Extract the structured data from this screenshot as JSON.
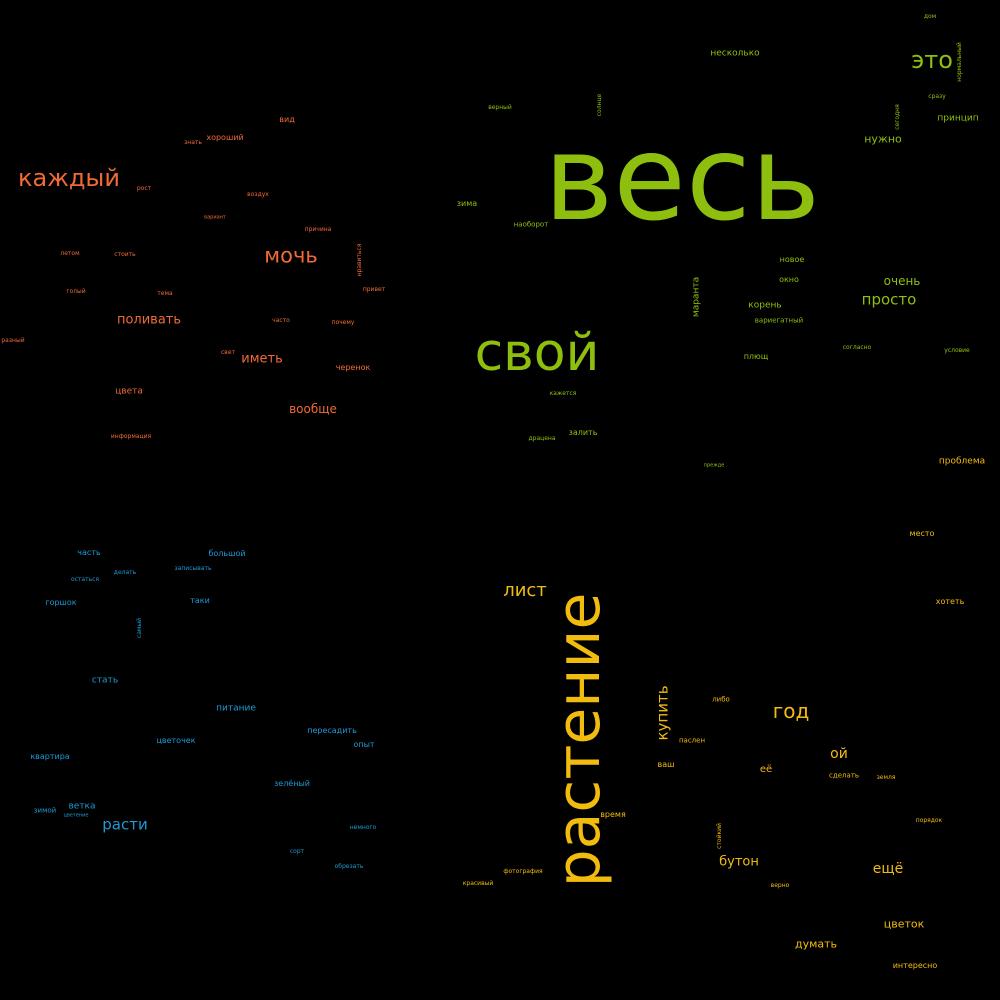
{
  "background_color": "#000000",
  "palette": {
    "green": "#8fbf0e",
    "orange": "#f06a36",
    "blue": "#1e9ad6",
    "gold": "#f2bc0f"
  },
  "words": {
    "g": [
      "весь",
      "свой",
      "это",
      "просто",
      "очень",
      "нужно",
      "принцип",
      "несколько",
      "новое",
      "окно",
      "корень",
      "вариегатный",
      "плющ",
      "маранта",
      "зима",
      "наоборот",
      "дом",
      "сразу",
      "залить",
      "драцена",
      "согласно",
      "условие",
      "кажется",
      "нормальный",
      "сегодня",
      "солнце",
      "верный",
      "прежде"
    ],
    "o": [
      "каждый",
      "мочь",
      "поливать",
      "иметь",
      "вообще",
      "хороший",
      "вид",
      "цвета",
      "черенок",
      "рост",
      "воздух",
      "знать",
      "причина",
      "стоить",
      "летом",
      "голый",
      "тема",
      "часто",
      "почему",
      "свет",
      "нравиться",
      "привет",
      "разный",
      "информация",
      "вариант",
      "место"
    ],
    "b": [
      "расти",
      "часть",
      "горшок",
      "стать",
      "питание",
      "пересадить",
      "цветочек",
      "опыт",
      "квартира",
      "ветка",
      "зимой",
      "зелёный",
      "немного",
      "сорт",
      "обрезать",
      "большой",
      "таки",
      "записывать",
      "делать",
      "остаться",
      "самый",
      "цветение"
    ],
    "y": [
      "растение",
      "лист",
      "год",
      "купить",
      "ой",
      "её",
      "ваш",
      "паслен",
      "либо",
      "время",
      "бутон",
      "ещё",
      "сделать",
      "цветок",
      "думать",
      "интересно",
      "хотеть",
      "место",
      "проблема",
      "фотография",
      "красивый",
      "порядок",
      "верно",
      "земля",
      "стойкий"
    ]
  }
}
